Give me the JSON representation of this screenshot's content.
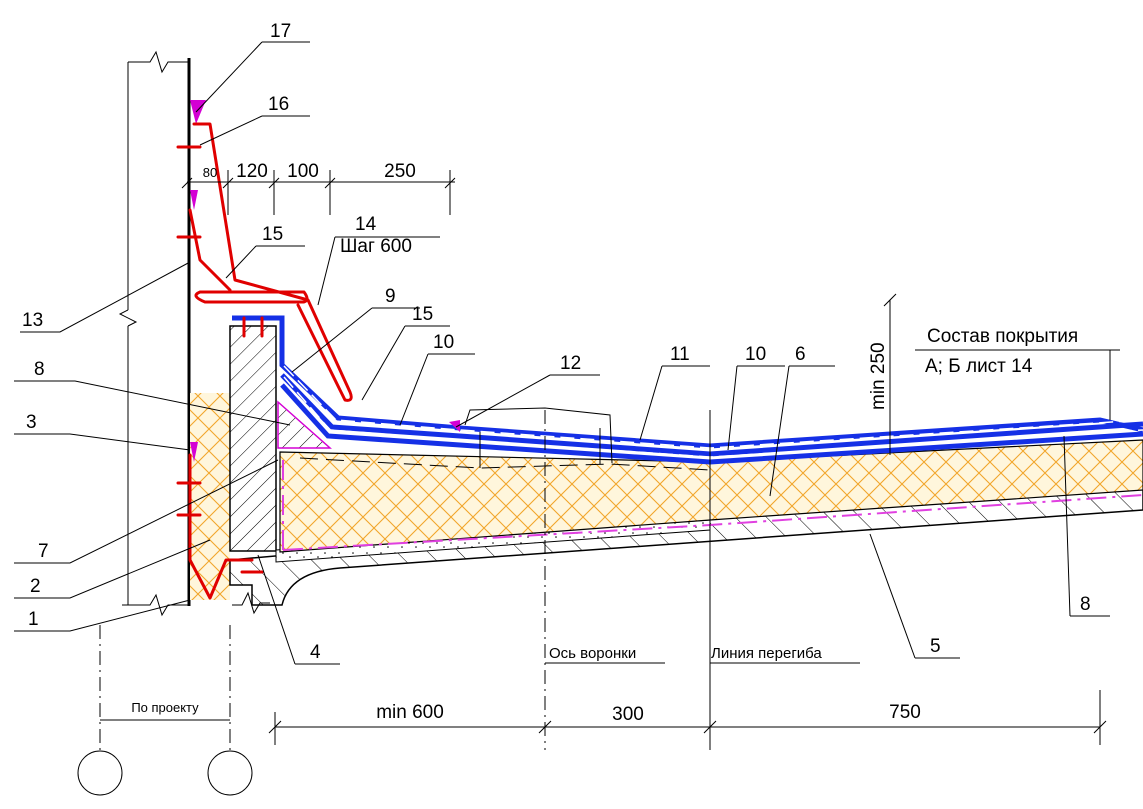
{
  "callouts": [
    "17",
    "16",
    "15",
    "14",
    "13",
    "9",
    "15",
    "10",
    "8",
    "3",
    "12",
    "11",
    "10",
    "6",
    "7",
    "2",
    "1",
    "4",
    "5",
    "8"
  ],
  "top_dims": [
    "80",
    "120",
    "100",
    "250"
  ],
  "step_label": "Шаг 600",
  "min_height": "min 250",
  "composition": {
    "title": "Состав покрытия",
    "ref": "А; Б лист 14"
  },
  "axis_labels": {
    "funnel": "Ось воронки",
    "bend": "Линия перегиба"
  },
  "bottom_dims": [
    "min 600",
    "300",
    "750"
  ],
  "by_project": "По проекту",
  "colors": {
    "flashing": "#e00000",
    "membrane": "#1530e6",
    "insulation": "#f2a62b",
    "sealant": "#d400d4",
    "vapor": "#e040e0"
  }
}
